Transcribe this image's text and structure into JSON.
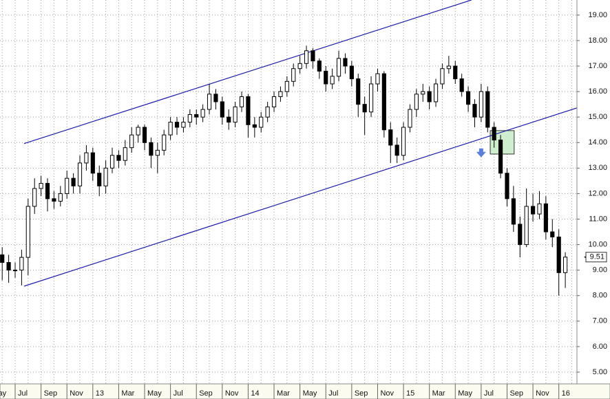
{
  "chart_data": {
    "type": "candlestick",
    "x": [
      -2,
      -1,
      0,
      1,
      2,
      3,
      4,
      5,
      6,
      7,
      8,
      9,
      10,
      11,
      12,
      13,
      14,
      15,
      16,
      17,
      18,
      19,
      20,
      21,
      22,
      23,
      24,
      25,
      26,
      27,
      28,
      29,
      30,
      31,
      32,
      33,
      34,
      35,
      36,
      37,
      38,
      39,
      40,
      41,
      42,
      43,
      44,
      45,
      46,
      47,
      48,
      49,
      50,
      51,
      52,
      53,
      54,
      55,
      56,
      57,
      58,
      59,
      60,
      61,
      62,
      63,
      64,
      65,
      66,
      67,
      68,
      69,
      70,
      71,
      72,
      73,
      74,
      75,
      76,
      77,
      78,
      79,
      80,
      81,
      82,
      83,
      84,
      85
    ],
    "open": [
      9.6,
      9.3,
      9.0,
      9.0,
      9.5,
      11.5,
      12.2,
      12.4,
      11.8,
      11.7,
      12.0,
      12.6,
      12.3,
      13.2,
      13.6,
      12.8,
      12.3,
      13.0,
      13.5,
      13.3,
      13.8,
      14.3,
      14.6,
      14.0,
      13.5,
      13.7,
      14.3,
      14.8,
      14.6,
      14.8,
      15.1,
      15.0,
      15.3,
      15.9,
      15.6,
      15.0,
      14.8,
      15.4,
      15.8,
      14.7,
      14.6,
      15.0,
      15.4,
      15.8,
      16.0,
      16.4,
      16.9,
      17.1,
      17.6,
      17.2,
      16.8,
      16.3,
      16.6,
      17.3,
      17.0,
      16.5,
      15.5,
      15.2,
      16.3,
      16.7,
      14.5,
      13.9,
      13.5,
      14.6,
      15.3,
      15.9,
      16.0,
      15.6,
      16.3,
      16.9,
      17.0,
      16.5,
      16.0,
      15.5,
      15.0,
      16.0,
      14.6,
      14.1,
      12.8,
      11.8,
      10.8,
      10.0,
      11.5,
      11.2,
      11.6,
      10.5,
      10.3,
      8.9
    ],
    "high": [
      9.9,
      9.6,
      9.3,
      9.8,
      11.8,
      12.6,
      12.7,
      12.6,
      12.1,
      12.3,
      12.9,
      12.8,
      13.5,
      13.9,
      13.8,
      13.1,
      13.3,
      13.8,
      13.7,
      14.1,
      14.6,
      14.7,
      14.7,
      14.2,
      14.0,
      14.5,
      15.0,
      15.0,
      15.0,
      15.3,
      15.3,
      15.5,
      16.3,
      16.1,
      15.8,
      15.3,
      15.6,
      16.0,
      15.9,
      15.0,
      15.2,
      15.6,
      16.0,
      16.2,
      16.6,
      17.1,
      17.4,
      17.8,
      17.7,
      17.3,
      17.0,
      16.9,
      17.6,
      17.5,
      17.2,
      16.7,
      15.8,
      16.6,
      16.9,
      16.8,
      14.8,
      14.2,
      14.8,
      15.5,
      16.1,
      16.3,
      16.2,
      16.5,
      17.1,
      17.4,
      17.2,
      16.7,
      16.2,
      15.7,
      16.3,
      16.2,
      14.8,
      14.3,
      13.0,
      12.3,
      11.1,
      12.2,
      12.0,
      12.1,
      11.9,
      11.0,
      10.6,
      9.7
    ],
    "low": [
      8.6,
      8.5,
      8.7,
      8.4,
      8.8,
      11.2,
      11.9,
      11.3,
      11.4,
      11.5,
      11.8,
      12.0,
      12.0,
      12.9,
      12.5,
      11.9,
      12.0,
      12.8,
      13.0,
      13.1,
      13.6,
      14.0,
      13.7,
      13.0,
      12.8,
      13.5,
      14.1,
      14.3,
      14.4,
      14.6,
      14.7,
      14.8,
      15.1,
      15.3,
      14.7,
      14.5,
      14.6,
      15.2,
      14.2,
      14.2,
      14.4,
      14.8,
      15.2,
      15.6,
      15.8,
      16.2,
      16.7,
      16.9,
      16.9,
      16.5,
      16.0,
      16.1,
      16.4,
      16.7,
      16.2,
      15.0,
      14.3,
      15.0,
      16.0,
      14.2,
      13.2,
      13.2,
      13.3,
      14.4,
      15.0,
      15.6,
      15.3,
      15.4,
      16.1,
      16.7,
      16.3,
      15.8,
      15.2,
      14.6,
      14.8,
      14.4,
      13.8,
      12.6,
      11.5,
      10.5,
      9.5,
      9.9,
      10.9,
      11.0,
      10.2,
      9.9,
      8.0,
      8.3
    ],
    "close": [
      9.3,
      9.0,
      9.0,
      9.5,
      11.5,
      12.2,
      12.4,
      11.8,
      11.7,
      12.0,
      12.6,
      12.3,
      13.2,
      13.6,
      12.8,
      12.3,
      13.0,
      13.5,
      13.3,
      13.8,
      14.3,
      14.6,
      14.0,
      13.5,
      13.7,
      14.3,
      14.8,
      14.6,
      14.8,
      15.1,
      15.0,
      15.3,
      15.9,
      15.6,
      15.0,
      14.8,
      15.4,
      15.8,
      14.7,
      14.6,
      15.0,
      15.4,
      15.8,
      16.0,
      16.4,
      16.9,
      17.1,
      17.6,
      17.2,
      16.8,
      16.3,
      16.6,
      17.3,
      17.0,
      16.5,
      15.5,
      15.2,
      16.3,
      16.7,
      14.5,
      13.9,
      13.5,
      14.6,
      15.3,
      15.9,
      16.0,
      15.6,
      16.3,
      16.9,
      17.0,
      16.5,
      16.0,
      15.5,
      15.0,
      16.0,
      14.6,
      14.1,
      12.8,
      11.8,
      10.8,
      10.0,
      11.5,
      11.2,
      11.6,
      10.5,
      10.3,
      8.9,
      9.51
    ],
    "xlim": [
      -2.34,
      86.8
    ],
    "xticks": [
      {
        "value": -4,
        "label": "May"
      },
      {
        "value": 0,
        "label": "Jul"
      },
      {
        "value": 4,
        "label": "Sep"
      },
      {
        "value": 8,
        "label": "Nov"
      },
      {
        "value": 12,
        "label": "13"
      },
      {
        "value": 16,
        "label": "Mar"
      },
      {
        "value": 20,
        "label": "May"
      },
      {
        "value": 24,
        "label": "Jul"
      },
      {
        "value": 28,
        "label": "Sep"
      },
      {
        "value": 32,
        "label": "Nov"
      },
      {
        "value": 36,
        "label": "14"
      },
      {
        "value": 40,
        "label": "Mar"
      },
      {
        "value": 44,
        "label": "May"
      },
      {
        "value": 48,
        "label": "Jul"
      },
      {
        "value": 52,
        "label": "Sep"
      },
      {
        "value": 56,
        "label": "Nov"
      },
      {
        "value": 60,
        "label": "15"
      },
      {
        "value": 64,
        "label": "Mar"
      },
      {
        "value": 68,
        "label": "May"
      },
      {
        "value": 72,
        "label": "Jul"
      },
      {
        "value": 76,
        "label": "Sep"
      },
      {
        "value": 80,
        "label": "Nov"
      },
      {
        "value": 84,
        "label": "16"
      }
    ],
    "ylim": [
      4.54,
      19.59
    ],
    "yticks": [
      {
        "value": 5,
        "label": "5.00"
      },
      {
        "value": 6,
        "label": "6.00"
      },
      {
        "value": 7,
        "label": "7.00"
      },
      {
        "value": 8,
        "label": "8.00"
      },
      {
        "value": 9,
        "label": "9.00"
      },
      {
        "value": 10,
        "label": "10.00"
      },
      {
        "value": 11,
        "label": "11.00"
      },
      {
        "value": 12,
        "label": "12.00"
      },
      {
        "value": 13,
        "label": "13.00"
      },
      {
        "value": 14,
        "label": "14.00"
      },
      {
        "value": 15,
        "label": "15.00"
      },
      {
        "value": 16,
        "label": "16.00"
      },
      {
        "value": 17,
        "label": "17.00"
      },
      {
        "value": 18,
        "label": "18.00"
      },
      {
        "value": 19,
        "label": "19.00"
      }
    ],
    "grid": true,
    "last_price": {
      "value": 9.51,
      "label": "9.51"
    },
    "trend_lines": [
      {
        "color": "#1c1ca8",
        "x": [
          1.38,
          70.5
        ],
        "y": [
          13.96,
          19.59
        ]
      },
      {
        "color": "#1c1ca8",
        "x": [
          1.38,
          86.8
        ],
        "y": [
          8.37,
          15.36
        ]
      }
    ],
    "highlight_box": {
      "color": "#cfeecf",
      "x": [
        73.4,
        77.1
      ],
      "y": [
        13.55,
        14.47
      ]
    },
    "arrow": {
      "color": "#5a7fd8",
      "x": 72,
      "y": 13.5
    }
  }
}
